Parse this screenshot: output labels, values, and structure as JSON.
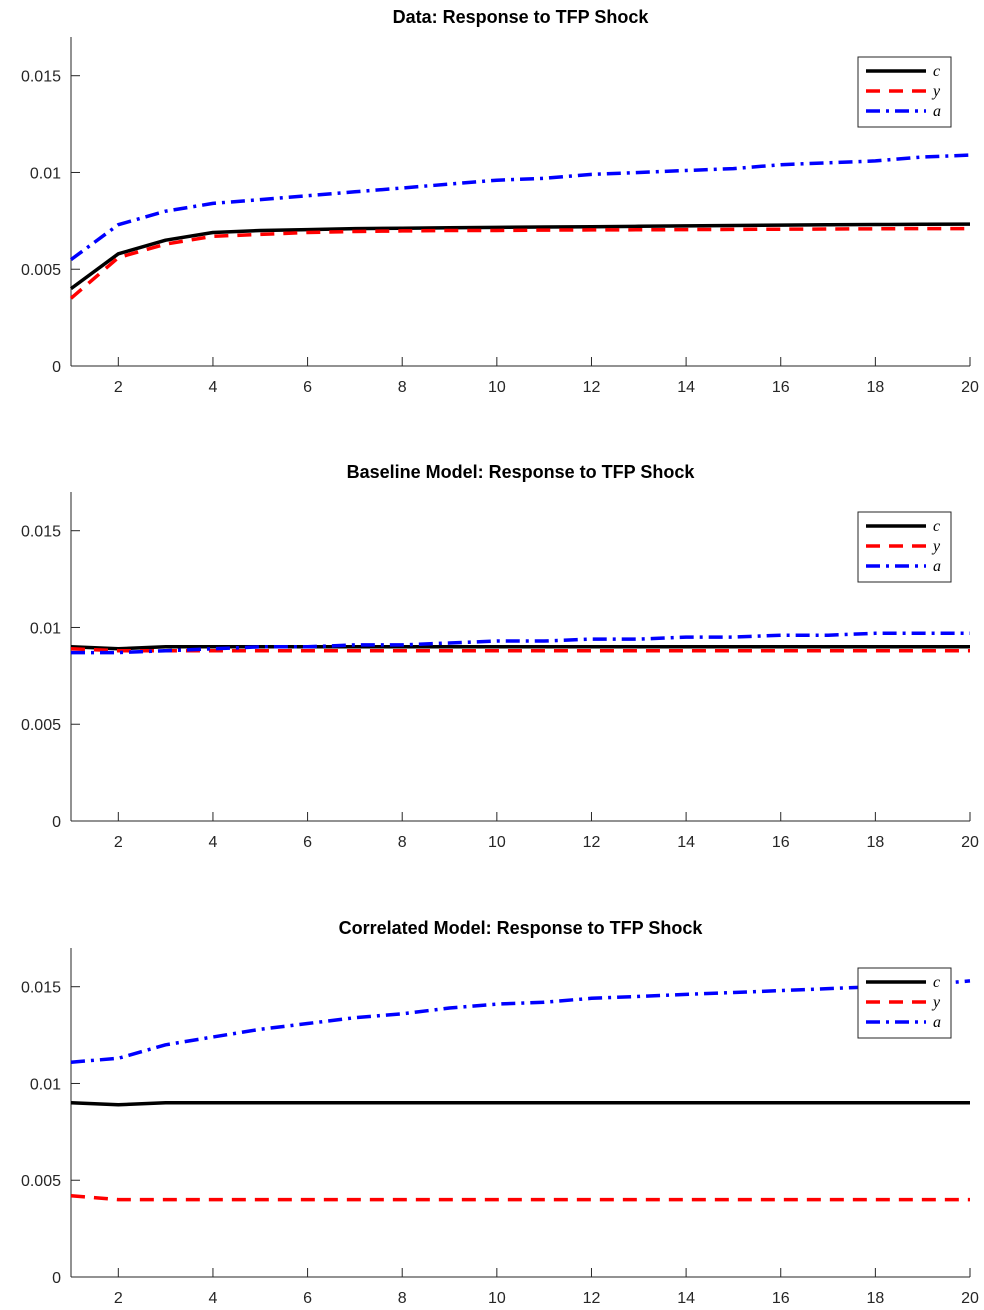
{
  "chart_data": [
    {
      "type": "line",
      "title": "Data: Response to TFP Shock",
      "xlabel": "",
      "ylabel": "",
      "xlim": [
        1,
        20
      ],
      "ylim": [
        0,
        0.017
      ],
      "xticks": [
        2,
        4,
        6,
        8,
        10,
        12,
        14,
        16,
        18,
        20
      ],
      "xtick_labels": [
        "2",
        "4",
        "6",
        "8",
        "10",
        "12",
        "14",
        "16",
        "18",
        "20"
      ],
      "yticks": [
        0,
        0.005,
        0.01,
        0.015
      ],
      "ytick_labels": [
        "0",
        "0.005",
        "0.01",
        "0.015"
      ],
      "grid": false,
      "legend_position": "top-right",
      "x": [
        1,
        2,
        3,
        4,
        5,
        6,
        7,
        8,
        9,
        10,
        11,
        12,
        13,
        14,
        15,
        16,
        17,
        18,
        19,
        20
      ],
      "series": [
        {
          "name": "c",
          "color": "#000000",
          "style": "solid",
          "values": [
            0.004,
            0.0058,
            0.0065,
            0.0069,
            0.007,
            0.00705,
            0.0071,
            0.00712,
            0.00714,
            0.00716,
            0.00718,
            0.0072,
            0.00722,
            0.00724,
            0.00726,
            0.00728,
            0.0073,
            0.00731,
            0.00732,
            0.00733
          ]
        },
        {
          "name": "y",
          "color": "#ff0000",
          "style": "dashed",
          "values": [
            0.0035,
            0.0056,
            0.0063,
            0.0067,
            0.0068,
            0.0069,
            0.00695,
            0.00698,
            0.007,
            0.007,
            0.00702,
            0.00703,
            0.00704,
            0.00705,
            0.00706,
            0.00707,
            0.00708,
            0.00709,
            0.0071,
            0.0071
          ]
        },
        {
          "name": "a",
          "color": "#0000ff",
          "style": "dashdot",
          "values": [
            0.0055,
            0.0073,
            0.008,
            0.0084,
            0.0086,
            0.0088,
            0.009,
            0.0092,
            0.0094,
            0.0096,
            0.0097,
            0.0099,
            0.01,
            0.0101,
            0.0102,
            0.0104,
            0.0105,
            0.0106,
            0.0108,
            0.0109
          ]
        }
      ]
    },
    {
      "type": "line",
      "title": "Baseline Model: Response to TFP Shock",
      "xlabel": "",
      "ylabel": "",
      "xlim": [
        1,
        20
      ],
      "ylim": [
        0,
        0.017
      ],
      "xticks": [
        2,
        4,
        6,
        8,
        10,
        12,
        14,
        16,
        18,
        20
      ],
      "xtick_labels": [
        "2",
        "4",
        "6",
        "8",
        "10",
        "12",
        "14",
        "16",
        "18",
        "20"
      ],
      "yticks": [
        0,
        0.005,
        0.01,
        0.015
      ],
      "ytick_labels": [
        "0",
        "0.005",
        "0.01",
        "0.015"
      ],
      "grid": false,
      "legend_position": "top-right",
      "x": [
        1,
        2,
        3,
        4,
        5,
        6,
        7,
        8,
        9,
        10,
        11,
        12,
        13,
        14,
        15,
        16,
        17,
        18,
        19,
        20
      ],
      "series": [
        {
          "name": "c",
          "color": "#000000",
          "style": "solid",
          "values": [
            0.009,
            0.0089,
            0.009,
            0.009,
            0.009,
            0.009,
            0.009,
            0.009,
            0.009,
            0.009,
            0.009,
            0.009,
            0.009,
            0.009,
            0.009,
            0.009,
            0.009,
            0.009,
            0.009,
            0.009
          ]
        },
        {
          "name": "y",
          "color": "#ff0000",
          "style": "dashed",
          "values": [
            0.0089,
            0.0088,
            0.0088,
            0.0088,
            0.0088,
            0.0088,
            0.0088,
            0.0088,
            0.0088,
            0.0088,
            0.0088,
            0.0088,
            0.0088,
            0.0088,
            0.0088,
            0.0088,
            0.0088,
            0.0088,
            0.0088,
            0.0088
          ]
        },
        {
          "name": "a",
          "color": "#0000ff",
          "style": "dashdot",
          "values": [
            0.0087,
            0.0087,
            0.0088,
            0.0089,
            0.009,
            0.009,
            0.0091,
            0.0091,
            0.0092,
            0.0093,
            0.0093,
            0.0094,
            0.0094,
            0.0095,
            0.0095,
            0.0096,
            0.0096,
            0.0097,
            0.0097,
            0.0097
          ]
        }
      ]
    },
    {
      "type": "line",
      "title": "Correlated Model: Response to TFP Shock",
      "xlabel": "",
      "ylabel": "",
      "xlim": [
        1,
        20
      ],
      "ylim": [
        0,
        0.017
      ],
      "xticks": [
        2,
        4,
        6,
        8,
        10,
        12,
        14,
        16,
        18,
        20
      ],
      "xtick_labels": [
        "2",
        "4",
        "6",
        "8",
        "10",
        "12",
        "14",
        "16",
        "18",
        "20"
      ],
      "yticks": [
        0,
        0.005,
        0.01,
        0.015
      ],
      "ytick_labels": [
        "0",
        "0.005",
        "0.01",
        "0.015"
      ],
      "grid": false,
      "legend_position": "top-right",
      "x": [
        1,
        2,
        3,
        4,
        5,
        6,
        7,
        8,
        9,
        10,
        11,
        12,
        13,
        14,
        15,
        16,
        17,
        18,
        19,
        20
      ],
      "series": [
        {
          "name": "c",
          "color": "#000000",
          "style": "solid",
          "values": [
            0.009,
            0.0089,
            0.009,
            0.009,
            0.009,
            0.009,
            0.009,
            0.009,
            0.009,
            0.009,
            0.009,
            0.009,
            0.009,
            0.009,
            0.009,
            0.009,
            0.009,
            0.009,
            0.009,
            0.009
          ]
        },
        {
          "name": "y",
          "color": "#ff0000",
          "style": "dashed",
          "values": [
            0.0042,
            0.004,
            0.004,
            0.004,
            0.004,
            0.004,
            0.004,
            0.004,
            0.004,
            0.004,
            0.004,
            0.004,
            0.004,
            0.004,
            0.004,
            0.004,
            0.004,
            0.004,
            0.004,
            0.004
          ]
        },
        {
          "name": "a",
          "color": "#0000ff",
          "style": "dashdot",
          "values": [
            0.0111,
            0.0113,
            0.012,
            0.0124,
            0.0128,
            0.0131,
            0.0134,
            0.0136,
            0.0139,
            0.0141,
            0.0142,
            0.0144,
            0.0145,
            0.0146,
            0.0147,
            0.0148,
            0.0149,
            0.015,
            0.0151,
            0.0153
          ]
        }
      ]
    }
  ]
}
